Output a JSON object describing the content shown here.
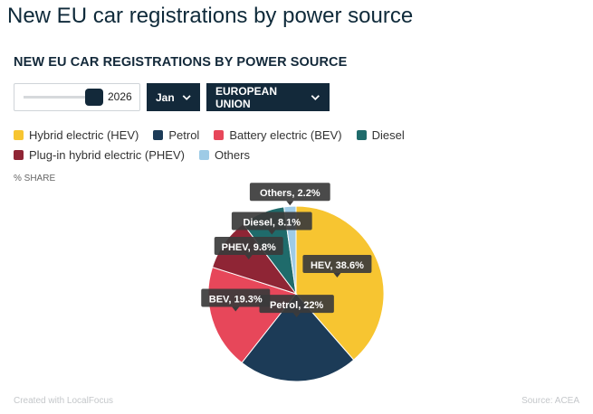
{
  "page": {
    "title": "New EU car registrations by power source"
  },
  "controls": {
    "year_value": "2026",
    "month_value": "Jan",
    "region_value": "EUROPEAN UNION"
  },
  "share_label": "% SHARE",
  "footer": {
    "created_with": "Created with LocalFocus",
    "source": "Source:  ACEA"
  },
  "colors": {
    "hev": "#f7c531",
    "petrol": "#1c3b57",
    "bev": "#e7475a",
    "diesel": "#1f6b6b",
    "phev": "#8f2535",
    "others": "#9ecbe6"
  },
  "chart_data": {
    "type": "pie",
    "title": "NEW EU CAR REGISTRATIONS BY POWER SOURCE",
    "legend": [
      {
        "name": "Hybrid electric (HEV)",
        "color": "#f7c531"
      },
      {
        "name": "Petrol",
        "color": "#1c3b57"
      },
      {
        "name": "Battery electric (BEV)",
        "color": "#e7475a"
      },
      {
        "name": "Diesel",
        "color": "#1f6b6b"
      },
      {
        "name": "Plug-in hybrid electric (PHEV)",
        "color": "#8f2535"
      },
      {
        "name": "Others",
        "color": "#9ecbe6"
      }
    ],
    "slices": [
      {
        "label": "HEV, 38.6%",
        "value": 38.6,
        "color": "#f7c531"
      },
      {
        "label": "Petrol, 22%",
        "value": 22,
        "color": "#1c3b57"
      },
      {
        "label": "BEV, 19.3%",
        "value": 19.3,
        "color": "#e7475a"
      },
      {
        "label": "PHEV, 9.8%",
        "value": 9.8,
        "color": "#8f2535"
      },
      {
        "label": "Diesel, 8.1%",
        "value": 8.1,
        "color": "#1f6b6b"
      },
      {
        "label": "Others, 2.2%",
        "value": 2.2,
        "color": "#9ecbe6"
      }
    ]
  }
}
